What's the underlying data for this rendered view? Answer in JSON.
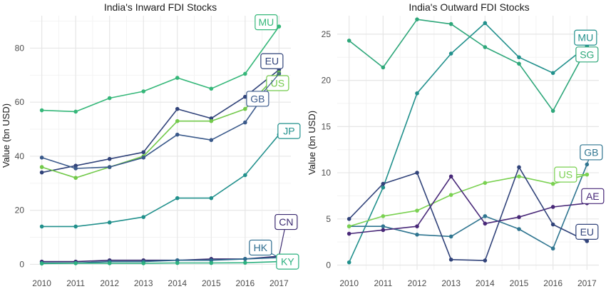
{
  "chart_data": [
    {
      "type": "line",
      "title": "India's Inward FDI Stocks",
      "xlabel": "",
      "ylabel": "Value (bn USD)",
      "x": [
        2010,
        2011,
        2012,
        2013,
        2014,
        2015,
        2016,
        2017
      ],
      "xlim": [
        2009.65,
        2017.35
      ],
      "ylim": [
        -2,
        92
      ],
      "yticks": [
        0,
        20,
        40,
        60,
        80
      ],
      "grid": true,
      "legend": "none",
      "series": [
        {
          "name": "MU",
          "color": "#35b779",
          "values": [
            57,
            56.5,
            61.5,
            64,
            69,
            65,
            70.5,
            88
          ],
          "tag_dx": -18,
          "tag_dy": -6
        },
        {
          "name": "EU",
          "color": "#31437a",
          "values": [
            34,
            36.5,
            39,
            41.5,
            57.5,
            54,
            62,
            72
          ],
          "tag_dx": -10,
          "tag_dy": -12
        },
        {
          "name": "US",
          "color": "#72c94a",
          "values": [
            36,
            32,
            36,
            40,
            53,
            53,
            57.5,
            71
          ],
          "tag_dx": -2,
          "tag_dy": 15
        },
        {
          "name": "GB",
          "color": "#3b5a8b",
          "values": [
            39.5,
            35.5,
            36,
            39.5,
            48,
            46,
            52.5,
            70.5
          ],
          "tag_dx": -30,
          "tag_dy": 35
        },
        {
          "name": "JP",
          "color": "#21908c",
          "values": [
            14,
            14,
            15.5,
            17.5,
            24.5,
            24.5,
            33,
            48
          ],
          "tag_dx": 14,
          "tag_dy": -5
        },
        {
          "name": "CN",
          "color": "#3b2a70",
          "values": [
            1,
            1,
            1.5,
            1.5,
            1.5,
            2,
            2,
            3
          ],
          "tag_dx": 10,
          "tag_dy": -48
        },
        {
          "name": "HK",
          "color": "#2c6b8e",
          "values": [
            0.5,
            0.5,
            1,
            1,
            1.5,
            1.5,
            2,
            2.5
          ],
          "tag_dx": -26,
          "tag_dy": -14
        },
        {
          "name": "KY",
          "color": "#2bb07f",
          "values": [
            0.3,
            0.4,
            0.4,
            0.4,
            0.5,
            0.5,
            0.6,
            1
          ],
          "tag_dx": 12,
          "tag_dy": 0
        }
      ]
    },
    {
      "type": "line",
      "title": "India's Outward FDI Stocks",
      "xlabel": "",
      "ylabel": "Value (bn USD)",
      "x": [
        2010,
        2011,
        2012,
        2013,
        2014,
        2015,
        2016,
        2017
      ],
      "xlim": [
        2009.65,
        2017.35
      ],
      "ylim": [
        -0.5,
        27
      ],
      "yticks": [
        0,
        5,
        10,
        15,
        20,
        25
      ],
      "grid": true,
      "legend": "none",
      "series": [
        {
          "name": "MU",
          "color": "#21908c",
          "values": [
            0.3,
            8.4,
            18.6,
            22.9,
            26.2,
            22.5,
            20.8,
            23.7
          ],
          "tag_dx": -2,
          "tag_dy": -12
        },
        {
          "name": "SG",
          "color": "#2ea77a",
          "values": [
            24.3,
            21.4,
            26.6,
            26.1,
            23.6,
            21.8,
            16.7,
            23.5
          ],
          "tag_dx": 0,
          "tag_dy": 9
        },
        {
          "name": "GB",
          "color": "#2f7590",
          "values": [
            4.2,
            4.2,
            3.3,
            3.1,
            5.3,
            3.9,
            1.8,
            10.9
          ],
          "tag_dx": 6,
          "tag_dy": -17
        },
        {
          "name": "US",
          "color": "#7ad151",
          "values": [
            4.2,
            5.3,
            5.9,
            7.6,
            8.9,
            9.6,
            8.8,
            9.8
          ],
          "tag_dx": -30,
          "tag_dy": 0
        },
        {
          "name": "AE",
          "color": "#482878",
          "values": [
            3.4,
            3.8,
            4.2,
            9.6,
            4.5,
            5.2,
            6.3,
            6.7
          ],
          "tag_dx": 8,
          "tag_dy": -10
        },
        {
          "name": "EU",
          "color": "#31437a",
          "values": [
            5.0,
            8.8,
            10.0,
            0.6,
            0.5,
            10.6,
            4.4,
            2.6
          ],
          "tag_dx": 0,
          "tag_dy": -13
        }
      ]
    }
  ]
}
